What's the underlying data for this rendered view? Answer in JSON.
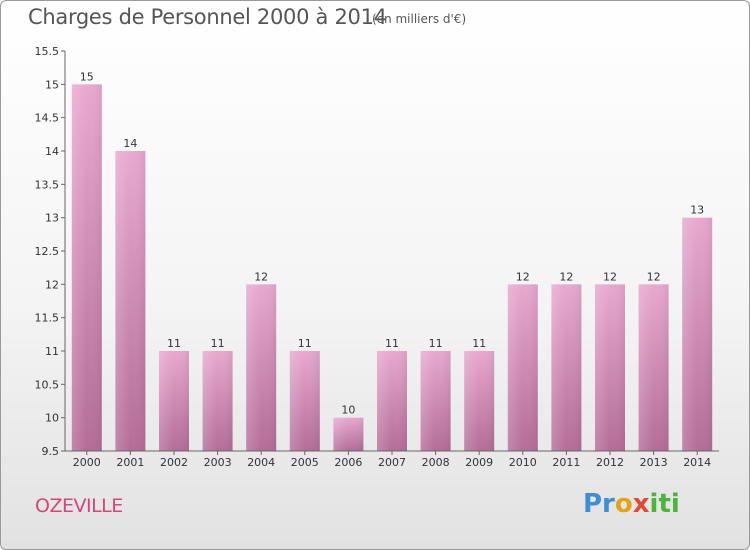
{
  "title": "Charges de Personnel 2000 à 2014",
  "subtitle": "(en milliers d'€)",
  "commune": "OZEVILLE",
  "logo": {
    "p1": "Pr",
    "p2": "o",
    "p3": "x",
    "p4": "iti"
  },
  "colors": {
    "bar_top": "#e8a8cf",
    "bar_bottom": "#b46d98",
    "accent": "#d5467a"
  },
  "chart_data": {
    "type": "bar",
    "title": "Charges de Personnel 2000 à 2014",
    "subtitle": "(en milliers d'€)",
    "xlabel": "",
    "ylabel": "",
    "categories": [
      "2000",
      "2001",
      "2002",
      "2003",
      "2004",
      "2005",
      "2006",
      "2007",
      "2008",
      "2009",
      "2010",
      "2011",
      "2012",
      "2013",
      "2014"
    ],
    "values": [
      15,
      14,
      11,
      11,
      12,
      11,
      10,
      11,
      11,
      11,
      12,
      12,
      12,
      12,
      13
    ],
    "data_labels": [
      "15",
      "14",
      "11",
      "11",
      "12",
      "11",
      "10",
      "11",
      "11",
      "11",
      "12",
      "12",
      "12",
      "12",
      "13"
    ],
    "ylim": [
      9.5,
      15.5
    ],
    "yticks": [
      "9.5",
      "10",
      "10.5",
      "11",
      "11.5",
      "12",
      "12.5",
      "13",
      "13.5",
      "14",
      "14.5",
      "15",
      "15.5"
    ],
    "grid": false,
    "legend": "none"
  }
}
